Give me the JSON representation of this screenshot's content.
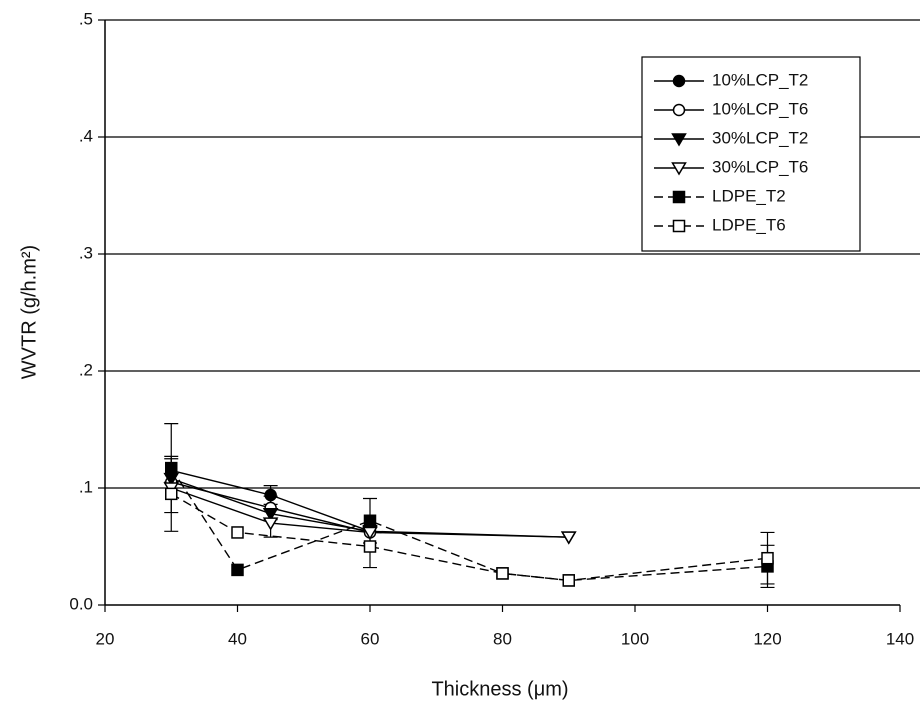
{
  "chart_data": {
    "type": "line",
    "x_label": "Thickness (μm)",
    "y_label": "WVTR (g/h.m²)",
    "xlim": [
      20,
      140
    ],
    "xticks": [
      20,
      40,
      60,
      80,
      100,
      120,
      140
    ],
    "ylim": [
      0,
      0.5
    ],
    "yticks": [
      {
        "value": 0,
        "label": "0.0"
      },
      {
        "value": 0.1,
        "label": ".1"
      },
      {
        "value": 0.2,
        "label": ".2"
      },
      {
        "value": 0.3,
        "label": ".3"
      },
      {
        "value": 0.4,
        "label": ".4"
      },
      {
        "value": 0.5,
        "label": ".5"
      }
    ],
    "grid": true,
    "legend": "upper right",
    "series": [
      {
        "name": "10%LCP_T2",
        "color": "#000000",
        "marker": "circle",
        "filled": true,
        "dashed": false,
        "x": [
          30,
          45,
          60
        ],
        "values": [
          0.115,
          0.094,
          0.063
        ],
        "errors": [
          0.01,
          0.008,
          null
        ]
      },
      {
        "name": "10%LCP_T6",
        "color": "#000000",
        "marker": "circle",
        "filled": false,
        "dashed": false,
        "x": [
          30,
          45,
          60
        ],
        "values": [
          0.105,
          0.083,
          0.062
        ],
        "errors": [
          null,
          0.01,
          null
        ]
      },
      {
        "name": "30%LCP_T2",
        "color": "#000000",
        "marker": "triangle",
        "filled": true,
        "dashed": false,
        "x": [
          30,
          45,
          60,
          90
        ],
        "values": [
          0.108,
          0.078,
          0.063,
          0.058
        ],
        "errors": [
          null,
          null,
          null,
          null
        ]
      },
      {
        "name": "30%LCP_T6",
        "color": "#000000",
        "marker": "triangle",
        "filled": false,
        "dashed": false,
        "x": [
          30,
          45,
          60,
          90
        ],
        "values": [
          0.1,
          0.07,
          0.062,
          0.058
        ],
        "errors": [
          null,
          0.012,
          null,
          null
        ]
      },
      {
        "name": "LDPE_T2",
        "color": "#000000",
        "marker": "square",
        "filled": true,
        "dashed": true,
        "x": [
          30,
          40,
          60,
          80,
          90,
          120
        ],
        "values": [
          0.117,
          0.03,
          0.072,
          0.027,
          0.021,
          0.033
        ],
        "errors": [
          0.038,
          null,
          0.019,
          null,
          null,
          0.018
        ]
      },
      {
        "name": "LDPE_T6",
        "color": "#000000",
        "marker": "square",
        "filled": false,
        "dashed": true,
        "x": [
          30,
          40,
          60,
          80,
          90,
          120
        ],
        "values": [
          0.095,
          0.062,
          0.05,
          0.027,
          0.021,
          0.04
        ],
        "errors": [
          0.032,
          null,
          0.018,
          null,
          null,
          0.022
        ]
      }
    ]
  }
}
